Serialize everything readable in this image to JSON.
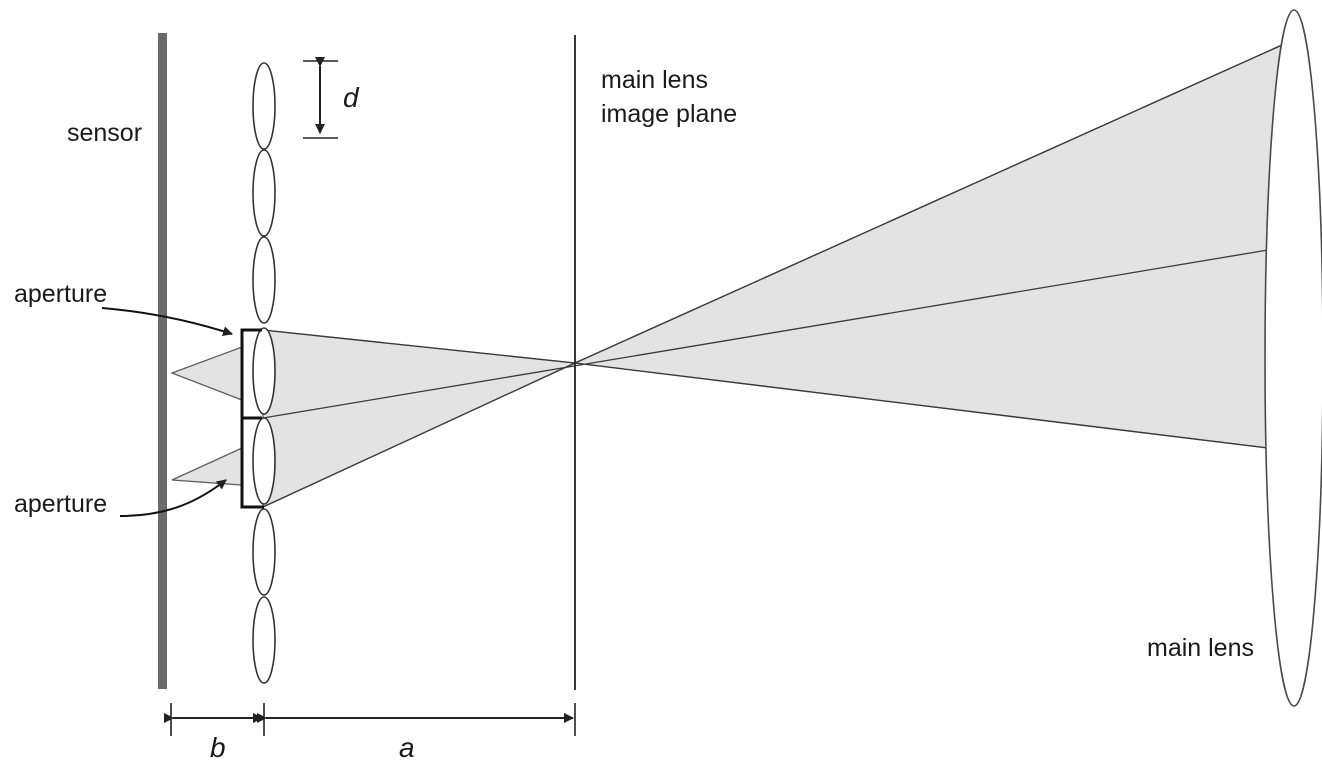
{
  "labels": {
    "sensor": "sensor",
    "aperture_top": "aperture",
    "aperture_bottom": "aperture",
    "image_plane_line1": "main lens",
    "image_plane_line2": "image plane",
    "main_lens": "main lens",
    "pitch": "d",
    "gap_sensor_microlens": "b",
    "gap_microlens_image_plane": "a"
  },
  "colors": {
    "sensor": "#6b6b6b",
    "ray_fill": "#e3e3e3",
    "line": "#222222"
  }
}
